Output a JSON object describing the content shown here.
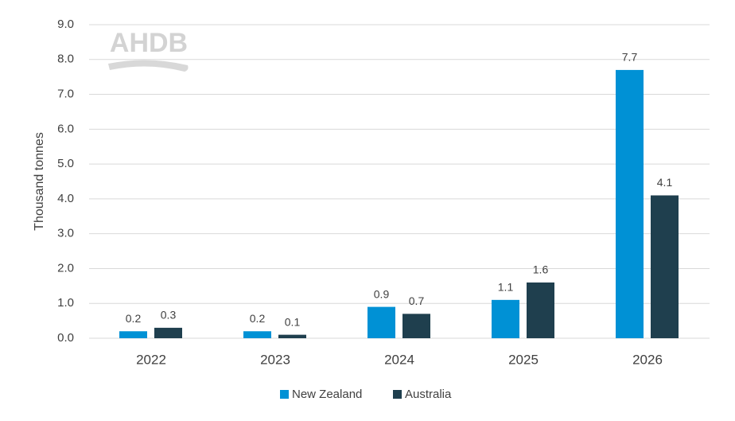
{
  "chart_data": {
    "type": "bar",
    "watermark": "AHDB",
    "y_label": "Thousand tonnes",
    "categories": [
      "2022",
      "2023",
      "2024",
      "2025",
      "2026"
    ],
    "series": [
      {
        "name": "New Zealand",
        "color": "#0091d5",
        "values": [
          0.2,
          0.2,
          0.9,
          1.1,
          7.7
        ]
      },
      {
        "name": "Australia",
        "color": "#1f3f4e",
        "values": [
          0.3,
          0.1,
          0.7,
          1.6,
          4.1
        ]
      }
    ],
    "ylim": [
      0,
      9
    ],
    "yticks": [
      {
        "value": 0,
        "label": "0.0"
      },
      {
        "value": 1,
        "label": "1.0"
      },
      {
        "value": 2,
        "label": "2.0"
      },
      {
        "value": 3,
        "label": "3.0"
      },
      {
        "value": 4,
        "label": "4.0"
      },
      {
        "value": 5,
        "label": "5.0"
      },
      {
        "value": 6,
        "label": "6.0"
      },
      {
        "value": 7,
        "label": "7.0"
      },
      {
        "value": 8,
        "label": "8.0"
      },
      {
        "value": 9,
        "label": "9.0"
      }
    ],
    "grid": true,
    "legend": "bottom"
  }
}
